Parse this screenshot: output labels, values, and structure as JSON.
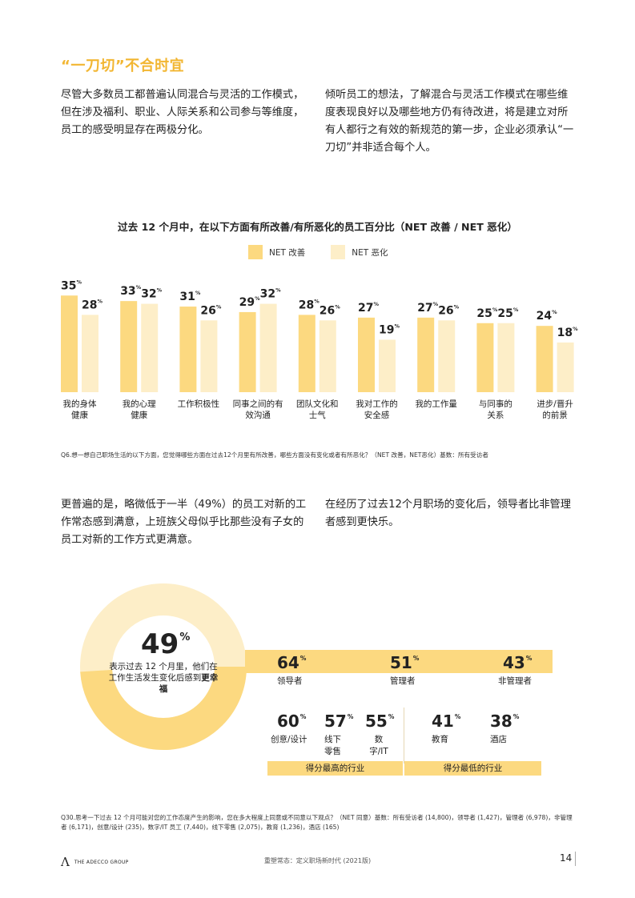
{
  "section_title": "“一刀切”不合时宜",
  "paragraphs": {
    "p1": "尽管大多数员工都普遍认同混合与灵活的工作模式，但在涉及福利、职业、人际关系和公司参与等维度，员工的感受明显存在两极分化。",
    "p2": "倾听员工的想法，了解混合与灵活工作模式在哪些维度表现良好以及哪些地方仍有待改进，将是建立对所有人都行之有效的新规范的第一步，企业必须承认“一刀切”并非适合每个人。",
    "p3": "更普遍的是，略微低于一半（49%）的员工对新的工作常态感到满意，上班族父母似乎比那些没有子女的员工对新的工作方式更满意。",
    "p4": "在经历了过去12个月职场的变化后，领导者比非管理者感到更快乐。"
  },
  "chart_data": {
    "type": "bar",
    "title": "过去 12 个月中，在以下方面有所改善/有所恶化的员工百分比（NET 改善 / NET 恶化）",
    "categories": [
      [
        "我的身体",
        "健康"
      ],
      [
        "我的心理",
        "健康"
      ],
      [
        "工作积极性"
      ],
      [
        "同事之间的有",
        "效沟通"
      ],
      [
        "团队文化和",
        "士气"
      ],
      [
        "我对工作的",
        "安全感"
      ],
      [
        "我的工作量"
      ],
      [
        "与同事的",
        "关系"
      ],
      [
        "进步/晋升",
        "的前景"
      ]
    ],
    "series": [
      {
        "name": "NET 改善",
        "color": "#fcd980",
        "values": [
          35,
          33,
          31,
          29,
          28,
          27,
          27,
          25,
          24
        ]
      },
      {
        "name": "NET 恶化",
        "color": "#fdeec8",
        "values": [
          28,
          32,
          26,
          32,
          26,
          19,
          26,
          25,
          18
        ]
      }
    ],
    "value_suffix": "%",
    "ylim": [
      0,
      35
    ],
    "grid": false,
    "legend_position": "top-center"
  },
  "footnote1": "Q6.想一想自己职场生活的以下方面，您觉得哪些方面在过去12个月里有所改善，哪些方面没有变化或者有所恶化？（NET 改善，NET恶化）基数：所有受访者",
  "donut": {
    "value": 49,
    "unit": "%",
    "fill_color": "#fcd980",
    "track_color": "#fdeec8",
    "desc_prefix": "表示过去 12 个月里，他们在工作生活发生变化后感到",
    "desc_bold": "更幸福"
  },
  "roles": [
    {
      "value": "64",
      "unit": "%",
      "label": "领导者"
    },
    {
      "value": "51",
      "unit": "%",
      "label": "管理者"
    },
    {
      "value": "43",
      "unit": "%",
      "label": "非管理者"
    }
  ],
  "industries": [
    {
      "value": "60",
      "unit": "%",
      "label": "创意/设计"
    },
    {
      "value": "57",
      "unit": "%",
      "label": "线下零售"
    },
    {
      "value": "55",
      "unit": "%",
      "label": "数字/IT"
    },
    {
      "value": "41",
      "unit": "%",
      "label": "教育"
    },
    {
      "value": "38",
      "unit": "%",
      "label": "酒店"
    }
  ],
  "captions": {
    "highest": "得分最高的行业",
    "lowest": "得分最低的行业"
  },
  "footnote2": "Q30.思考一下过去 12 个月可能对您的工作态度产生的影响，您在多大程度上同意或不同意以下观点？（NET 同意）基数：所有受访者 (14,800)，领导者 (1,427)，管理者 (6,978)，非管理者 (6,171)，创意/设计 (235)，数字/IT 员工 (7,440)，线下零售 (2,075)，教育 (1,236)，酒店 (165)",
  "footer": {
    "logo_text": "THE ADECCO GROUP",
    "center": "重塑常态：定义职场新时代 (2021版)",
    "page": "14"
  }
}
